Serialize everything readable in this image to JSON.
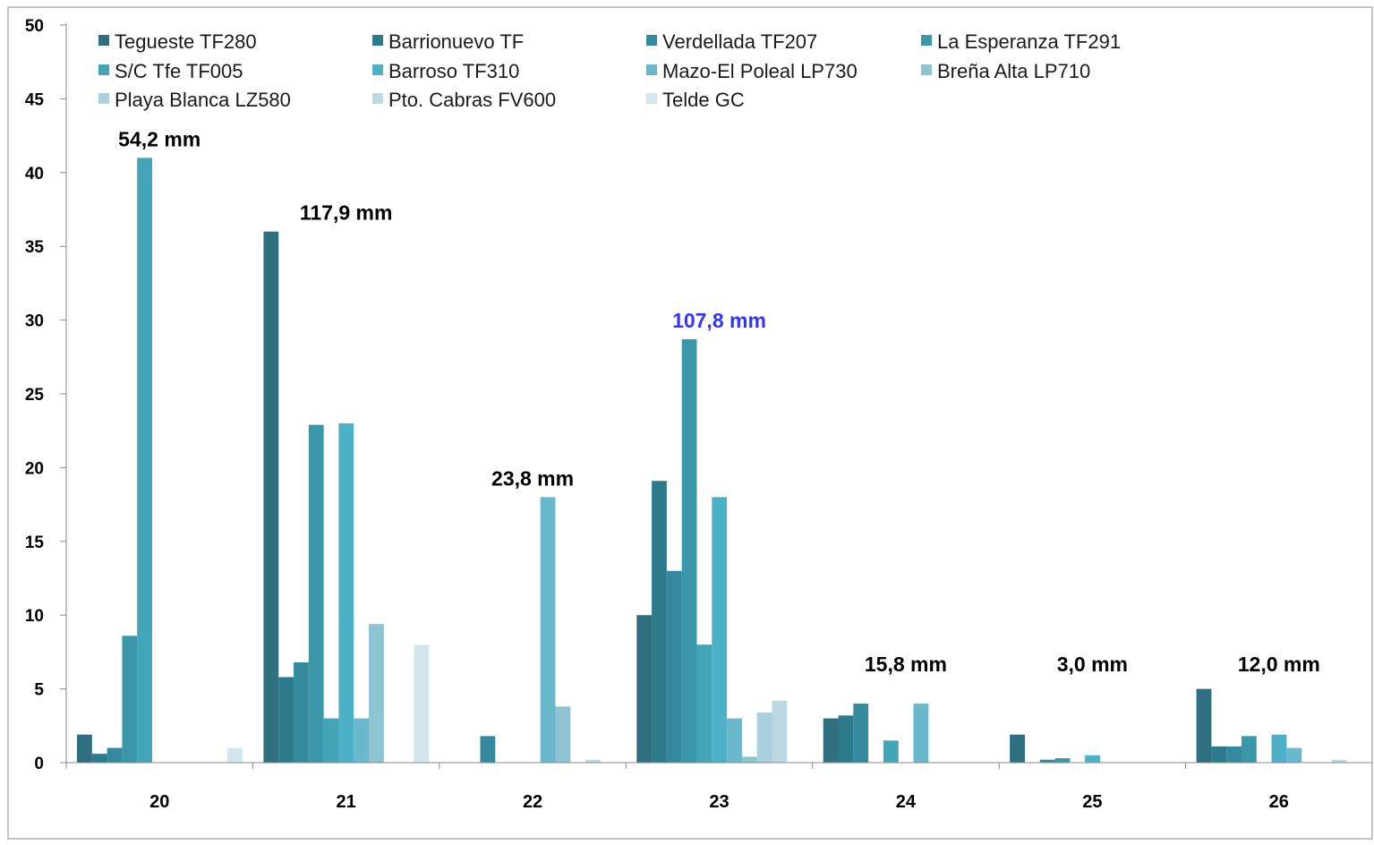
{
  "chart_data": {
    "type": "bar",
    "title": "",
    "xlabel": "",
    "ylabel": "",
    "ylim": [
      0,
      50
    ],
    "yticks": [
      0,
      5,
      10,
      15,
      20,
      25,
      30,
      35,
      40,
      45,
      50
    ],
    "ytick_labels": [
      "0",
      "5",
      "10",
      "15",
      "20",
      "25",
      "30",
      "35",
      "40",
      "45",
      "50"
    ],
    "categories": [
      "20",
      "21",
      "22",
      "23",
      "24",
      "25",
      "26"
    ],
    "grid": false,
    "legend_position": "top",
    "series": [
      {
        "name": "Tegueste TF280",
        "color": "#2e6f80",
        "values": [
          1.9,
          36.0,
          0,
          10.0,
          3.0,
          1.9,
          5.0
        ]
      },
      {
        "name": "Barrionuevo TF",
        "color": "#2e7a8d",
        "values": [
          0.6,
          5.8,
          0,
          19.1,
          3.2,
          0,
          1.1
        ]
      },
      {
        "name": "Verdellada TF207",
        "color": "#348a9c",
        "values": [
          1.0,
          6.8,
          1.8,
          13.0,
          4.0,
          0.2,
          1.1
        ]
      },
      {
        "name": "La Esperanza TF291",
        "color": "#3a97a9",
        "values": [
          8.6,
          22.9,
          0,
          28.7,
          0,
          0.3,
          1.8
        ]
      },
      {
        "name": "S/C Tfe TF005",
        "color": "#44a5b8",
        "values": [
          41.0,
          3.0,
          0,
          8.0,
          1.5,
          0,
          0
        ]
      },
      {
        "name": "Barroso TF310",
        "color": "#4cb0c7",
        "values": [
          0,
          23.0,
          0,
          18.0,
          0,
          0.5,
          1.9
        ]
      },
      {
        "name": "Mazo-El Poleal LP730",
        "color": "#6ab8cc",
        "values": [
          0,
          3.0,
          18.0,
          3.0,
          4.0,
          0,
          1.0
        ]
      },
      {
        "name": "Breña Alta LP710",
        "color": "#8ec3d2",
        "values": [
          0,
          9.4,
          3.8,
          0.4,
          0,
          0,
          0
        ]
      },
      {
        "name": "Playa Blanca LZ580",
        "color": "#a9d0dc",
        "values": [
          0,
          0,
          0,
          3.4,
          0,
          0,
          0
        ]
      },
      {
        "name": "Pto. Cabras FV600",
        "color": "#bcd9e2",
        "values": [
          0,
          0,
          0.2,
          4.2,
          0,
          0,
          0.2
        ]
      },
      {
        "name": "Telde GC",
        "color": "#d3e6ec",
        "values": [
          1.0,
          8.0,
          0,
          0,
          0,
          0,
          0
        ]
      }
    ],
    "annotations": [
      {
        "category": "20",
        "text": "54,2 mm",
        "color": "#000000"
      },
      {
        "category": "21",
        "text": "117,9 mm",
        "color": "#000000"
      },
      {
        "category": "22",
        "text": "23,8 mm",
        "color": "#000000"
      },
      {
        "category": "23",
        "text": "107,8 mm",
        "color": "#3333ff"
      },
      {
        "category": "24",
        "text": "15,8 mm",
        "color": "#000000"
      },
      {
        "category": "25",
        "text": "3,0 mm",
        "color": "#000000"
      },
      {
        "category": "26",
        "text": "12,0 mm",
        "color": "#000000"
      }
    ]
  }
}
